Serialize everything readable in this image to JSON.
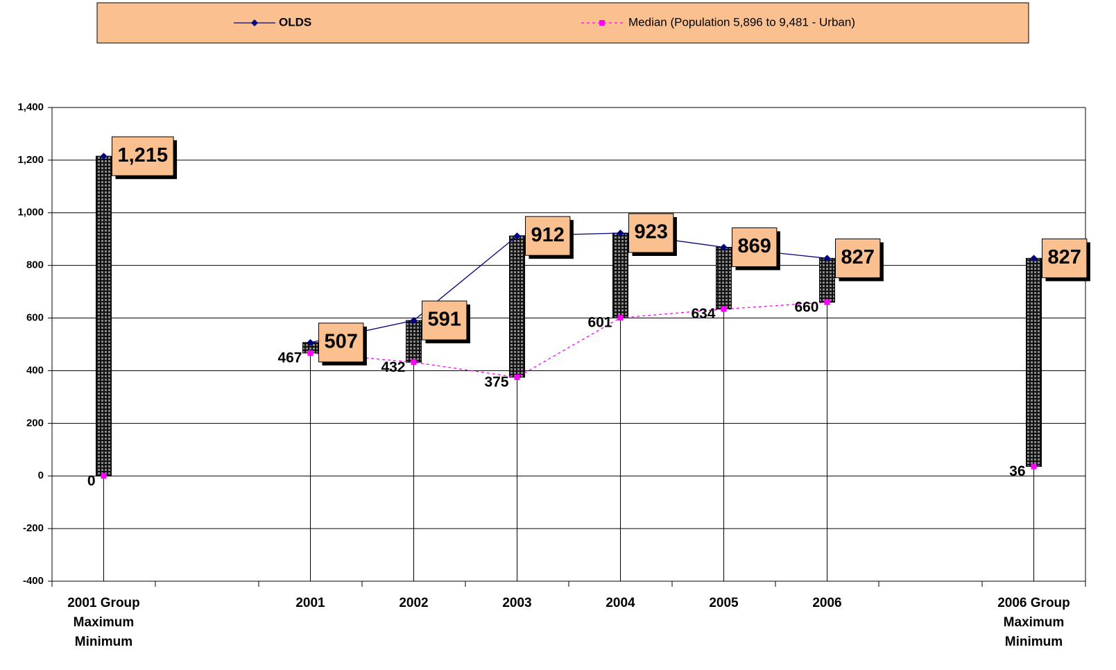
{
  "chart_data": {
    "type": "line",
    "categories": [
      "2001 Group Maximum Minimum",
      null,
      "2001",
      "2002",
      "2003",
      "2004",
      "2005",
      "2006",
      null,
      "2006 Group Maximum Minimum"
    ],
    "series": [
      {
        "name": "OLDS",
        "color": "#000080",
        "values": [
          1215,
          null,
          507,
          591,
          912,
          923,
          869,
          827,
          null,
          827
        ],
        "value_labels": [
          "1,215",
          null,
          "507",
          "591",
          "912",
          "923",
          "869",
          "827",
          null,
          "827"
        ]
      },
      {
        "name": "Median (Population 5,896 to 9,481 - Urban)",
        "color": "#ff00ff",
        "values": [
          0,
          null,
          467,
          432,
          375,
          601,
          634,
          660,
          null,
          36
        ]
      }
    ],
    "ylim": [
      -400,
      1400
    ],
    "yticks": [
      -400,
      -200,
      0,
      200,
      400,
      600,
      800,
      {
        "value": 1000,
        "label": "1,000"
      },
      {
        "value": 1200,
        "label": "1,200"
      },
      {
        "value": 1400,
        "label": "1,400"
      }
    ],
    "grid": true,
    "legend": "top"
  }
}
